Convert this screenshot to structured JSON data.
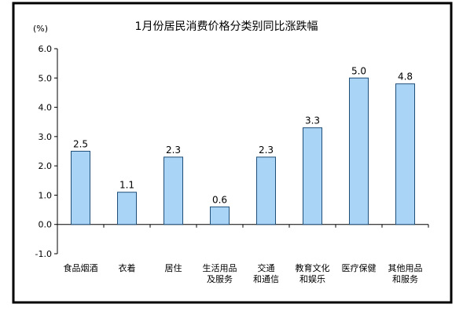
{
  "chart_data": {
    "type": "bar",
    "title": "1月份居民消费价格分类别同比涨跌幅",
    "unit_label": "(%)",
    "categories": [
      [
        "食品烟酒"
      ],
      [
        "衣着"
      ],
      [
        "居住"
      ],
      [
        "生活用品",
        "及服务"
      ],
      [
        "交通",
        "和通信"
      ],
      [
        "教育文化",
        "和娱乐"
      ],
      [
        "医疗保健"
      ],
      [
        "其他用品",
        "和服务"
      ]
    ],
    "values": [
      2.5,
      1.1,
      2.3,
      0.6,
      2.3,
      3.3,
      5.0,
      4.8
    ],
    "value_labels": [
      "2.5",
      "1.1",
      "2.3",
      "0.6",
      "2.3",
      "3.3",
      "5.0",
      "4.8"
    ],
    "ylim": [
      -1.0,
      6.0
    ],
    "yticks": [
      "-1.0",
      "0.0",
      "1.0",
      "2.0",
      "3.0",
      "4.0",
      "5.0",
      "6.0"
    ],
    "ytick_values": [
      -1,
      0,
      1,
      2,
      3,
      4,
      5,
      6
    ],
    "grid": false,
    "bar_color": "#a9d4f5",
    "bar_edge_color": "#1f4e79"
  }
}
